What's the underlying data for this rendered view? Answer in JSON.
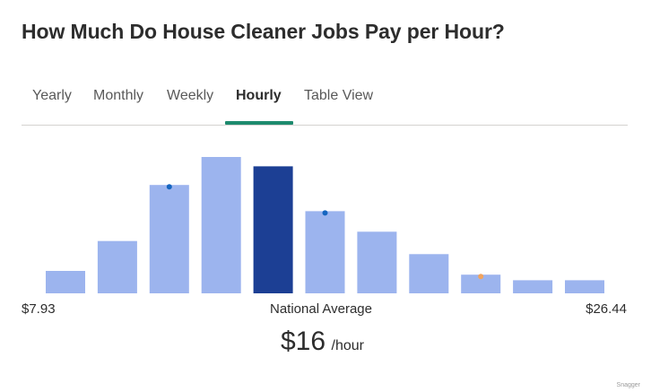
{
  "page": {
    "title": "How Much Do House Cleaner Jobs Pay per Hour?",
    "watermark": "Snagger"
  },
  "tabs": [
    {
      "label": "Yearly",
      "active": false
    },
    {
      "label": "Monthly",
      "active": false
    },
    {
      "label": "Weekly",
      "active": false
    },
    {
      "label": "Hourly",
      "active": true
    },
    {
      "label": "Table View",
      "active": false
    }
  ],
  "colors": {
    "bar": "#9cb4ee",
    "bar_highlight": "#1c3f94",
    "dot_blue": "#1565c0",
    "dot_orange": "#f0a35e",
    "tab_underline": "#1e8a6e"
  },
  "chart_data": {
    "type": "bar",
    "title": "",
    "xlabel": "",
    "ylabel": "",
    "x_range_labels": {
      "min": "$7.93",
      "max": "$26.44"
    },
    "values": [
      12,
      28,
      58,
      73,
      68,
      44,
      33,
      21,
      10,
      7,
      7
    ],
    "highlight_index": 4,
    "markers": [
      {
        "bar_index": 2,
        "color": "#1565c0"
      },
      {
        "bar_index": 5,
        "color": "#1565c0"
      },
      {
        "bar_index": 8,
        "color": "#f0a35e"
      }
    ],
    "ylim": [
      0,
      73
    ],
    "grid": false,
    "legend": "none"
  },
  "summary": {
    "label": "National Average",
    "amount": "$16",
    "unit": "/hour"
  }
}
